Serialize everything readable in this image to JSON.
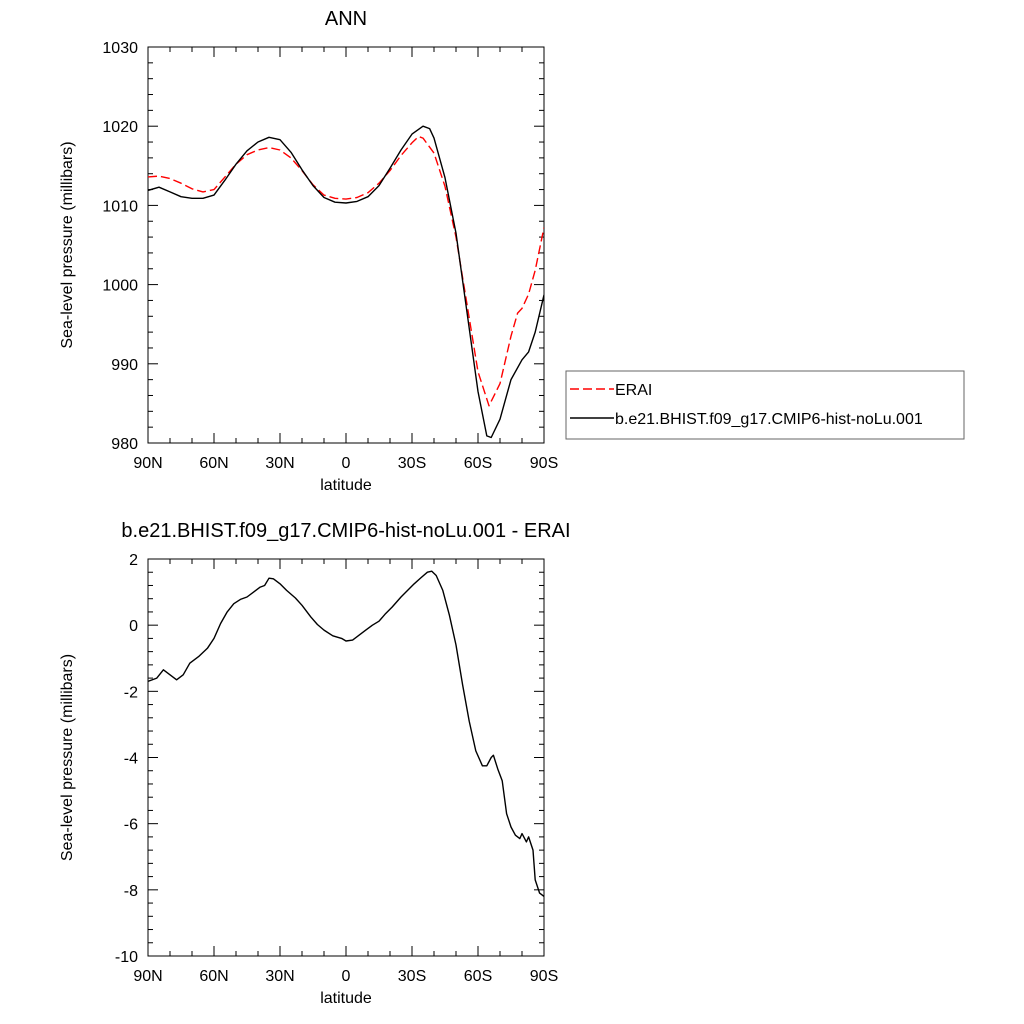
{
  "chart_data": [
    {
      "type": "line",
      "title": "ANN",
      "xlabel": "latitude",
      "ylabel": "Sea-level pressure (millibars)",
      "xlim": [
        90,
        -90
      ],
      "ylim": [
        980,
        1030
      ],
      "x_ticks": [
        {
          "value": 90,
          "label": "90N"
        },
        {
          "value": 60,
          "label": "60N"
        },
        {
          "value": 30,
          "label": "30N"
        },
        {
          "value": 0,
          "label": "0"
        },
        {
          "value": -30,
          "label": "30S"
        },
        {
          "value": -60,
          "label": "60S"
        },
        {
          "value": -90,
          "label": "90S"
        }
      ],
      "y_ticks": [
        {
          "value": 980,
          "label": "980"
        },
        {
          "value": 990,
          "label": "990"
        },
        {
          "value": 1000,
          "label": "1000"
        },
        {
          "value": 1010,
          "label": "1010"
        },
        {
          "value": 1020,
          "label": "1020"
        },
        {
          "value": 1030,
          "label": "1030"
        }
      ],
      "legend": {
        "placement": "right"
      },
      "series": [
        {
          "name": "ERAI",
          "color": "#ff0000",
          "dash": "dashed",
          "points": [
            [
              90,
              1013.6
            ],
            [
              85,
              1013.7
            ],
            [
              80,
              1013.4
            ],
            [
              75,
              1012.8
            ],
            [
              70,
              1012.1
            ],
            [
              65,
              1011.7
            ],
            [
              60,
              1012.0
            ],
            [
              55,
              1013.6
            ],
            [
              50,
              1015.2
            ],
            [
              45,
              1016.4
            ],
            [
              40,
              1017.0
            ],
            [
              35,
              1017.3
            ],
            [
              30,
              1017.0
            ],
            [
              25,
              1016.0
            ],
            [
              20,
              1014.4
            ],
            [
              15,
              1012.6
            ],
            [
              10,
              1011.3
            ],
            [
              5,
              1010.9
            ],
            [
              0,
              1010.8
            ],
            [
              -5,
              1011.0
            ],
            [
              -10,
              1011.6
            ],
            [
              -15,
              1012.8
            ],
            [
              -20,
              1014.4
            ],
            [
              -25,
              1016.3
            ],
            [
              -30,
              1017.9
            ],
            [
              -33,
              1018.7
            ],
            [
              -35,
              1018.5
            ],
            [
              -40,
              1016.6
            ],
            [
              -45,
              1012.4
            ],
            [
              -50,
              1006.0
            ],
            [
              -55,
              997.5
            ],
            [
              -60,
              989.0
            ],
            [
              -65,
              984.7
            ],
            [
              -70,
              987.5
            ],
            [
              -75,
              993.5
            ],
            [
              -78,
              996.4
            ],
            [
              -80,
              997.0
            ],
            [
              -83,
              998.8
            ],
            [
              -86,
              1001.8
            ],
            [
              -90,
              1007.2
            ]
          ]
        },
        {
          "name": "b.e21.BHIST.f09_g17.CMIP6-hist-noLu.001",
          "color": "#000000",
          "dash": "solid",
          "points": [
            [
              90,
              1011.9
            ],
            [
              85,
              1012.3
            ],
            [
              80,
              1011.7
            ],
            [
              75,
              1011.1
            ],
            [
              70,
              1010.9
            ],
            [
              65,
              1010.9
            ],
            [
              60,
              1011.3
            ],
            [
              55,
              1013.2
            ],
            [
              50,
              1015.2
            ],
            [
              45,
              1016.9
            ],
            [
              40,
              1018.0
            ],
            [
              35,
              1018.6
            ],
            [
              30,
              1018.3
            ],
            [
              25,
              1016.7
            ],
            [
              20,
              1014.5
            ],
            [
              15,
              1012.5
            ],
            [
              10,
              1011.0
            ],
            [
              5,
              1010.4
            ],
            [
              0,
              1010.3
            ],
            [
              -5,
              1010.5
            ],
            [
              -10,
              1011.1
            ],
            [
              -15,
              1012.5
            ],
            [
              -20,
              1014.7
            ],
            [
              -25,
              1017.0
            ],
            [
              -30,
              1019.0
            ],
            [
              -35,
              1020.0
            ],
            [
              -38,
              1019.7
            ],
            [
              -40,
              1018.5
            ],
            [
              -45,
              1013.5
            ],
            [
              -50,
              1006.5
            ],
            [
              -55,
              996.5
            ],
            [
              -60,
              986.5
            ],
            [
              -64,
              980.9
            ],
            [
              -66,
              980.7
            ],
            [
              -70,
              983.0
            ],
            [
              -75,
              988.0
            ],
            [
              -80,
              990.5
            ],
            [
              -83,
              991.5
            ],
            [
              -86,
              994.0
            ],
            [
              -90,
              998.7
            ]
          ]
        }
      ]
    },
    {
      "type": "line",
      "title": "b.e21.BHIST.f09_g17.CMIP6-hist-noLu.001 - ERAI",
      "xlabel": "latitude",
      "ylabel": "Sea-level pressure (millibars)",
      "xlim": [
        90,
        -90
      ],
      "ylim": [
        -10,
        2
      ],
      "x_ticks": [
        {
          "value": 90,
          "label": "90N"
        },
        {
          "value": 60,
          "label": "60N"
        },
        {
          "value": 30,
          "label": "30N"
        },
        {
          "value": 0,
          "label": "0"
        },
        {
          "value": -30,
          "label": "30S"
        },
        {
          "value": -60,
          "label": "60S"
        },
        {
          "value": -90,
          "label": "90S"
        }
      ],
      "y_ticks": [
        {
          "value": -10,
          "label": "-10"
        },
        {
          "value": -8,
          "label": "-8"
        },
        {
          "value": -6,
          "label": "-6"
        },
        {
          "value": -4,
          "label": "-4"
        },
        {
          "value": -2,
          "label": "-2"
        },
        {
          "value": 0,
          "label": "0"
        },
        {
          "value": 2,
          "label": "2"
        }
      ],
      "series": [
        {
          "color": "#000000",
          "dash": "solid",
          "points": [
            [
              90,
              -1.7
            ],
            [
              86,
              -1.6
            ],
            [
              83,
              -1.35
            ],
            [
              80,
              -1.5
            ],
            [
              77,
              -1.65
            ],
            [
              74,
              -1.5
            ],
            [
              71,
              -1.15
            ],
            [
              67,
              -0.95
            ],
            [
              63,
              -0.7
            ],
            [
              60,
              -0.4
            ],
            [
              57,
              0.05
            ],
            [
              54,
              0.4
            ],
            [
              51,
              0.65
            ],
            [
              48,
              0.78
            ],
            [
              45,
              0.85
            ],
            [
              42,
              1.0
            ],
            [
              39,
              1.15
            ],
            [
              37,
              1.2
            ],
            [
              35,
              1.42
            ],
            [
              33,
              1.4
            ],
            [
              30,
              1.25
            ],
            [
              27,
              1.05
            ],
            [
              23,
              0.82
            ],
            [
              20,
              0.6
            ],
            [
              16,
              0.25
            ],
            [
              13,
              0.02
            ],
            [
              10,
              -0.15
            ],
            [
              6,
              -0.32
            ],
            [
              2,
              -0.4
            ],
            [
              0,
              -0.48
            ],
            [
              -3,
              -0.45
            ],
            [
              -6,
              -0.3
            ],
            [
              -9,
              -0.15
            ],
            [
              -12,
              0.0
            ],
            [
              -15,
              0.12
            ],
            [
              -18,
              0.35
            ],
            [
              -21,
              0.55
            ],
            [
              -25,
              0.85
            ],
            [
              -28,
              1.05
            ],
            [
              -31,
              1.25
            ],
            [
              -34,
              1.43
            ],
            [
              -37,
              1.6
            ],
            [
              -39,
              1.63
            ],
            [
              -41,
              1.5
            ],
            [
              -44,
              1.05
            ],
            [
              -47,
              0.3
            ],
            [
              -50,
              -0.6
            ],
            [
              -53,
              -1.8
            ],
            [
              -56,
              -2.9
            ],
            [
              -59,
              -3.8
            ],
            [
              -62,
              -4.25
            ],
            [
              -64,
              -4.25
            ],
            [
              -66,
              -4.0
            ],
            [
              -67,
              -3.93
            ],
            [
              -69,
              -4.35
            ],
            [
              -71,
              -4.7
            ],
            [
              -73,
              -5.7
            ],
            [
              -75,
              -6.1
            ],
            [
              -77,
              -6.35
            ],
            [
              -79,
              -6.45
            ],
            [
              -80,
              -6.3
            ],
            [
              -82,
              -6.55
            ],
            [
              -83,
              -6.4
            ],
            [
              -85,
              -6.8
            ],
            [
              -86,
              -7.7
            ],
            [
              -88,
              -8.1
            ],
            [
              -90,
              -8.2
            ]
          ]
        }
      ]
    }
  ]
}
